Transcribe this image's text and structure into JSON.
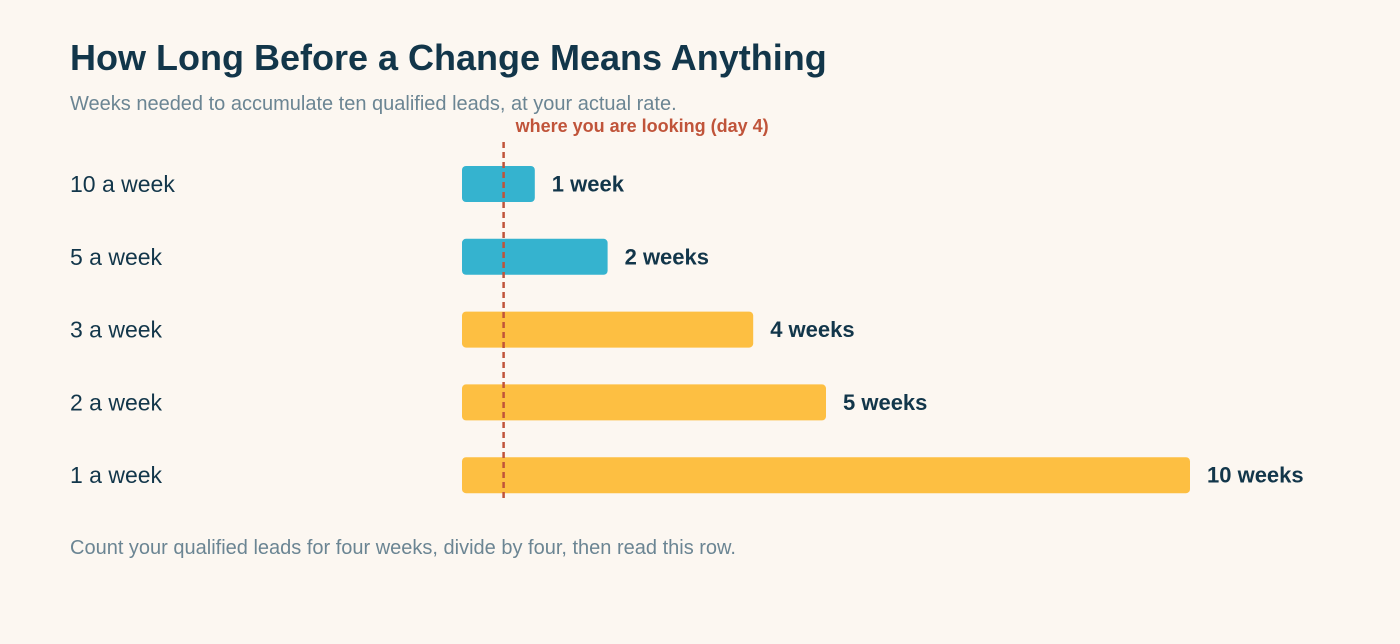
{
  "header": {
    "title": "How Long Before a Change Means Anything",
    "subtitle": "Weeks needed to accumulate ten qualified leads, at your actual rate."
  },
  "footer": {
    "note": "Count your qualified leads for four weeks, divide by four, then read this row."
  },
  "chart_data": {
    "type": "bar",
    "orientation": "horizontal",
    "categories": [
      "10 a week",
      "5 a week",
      "3 a week",
      "2 a week",
      "1 a week"
    ],
    "values": [
      1,
      2,
      4,
      5,
      10
    ],
    "value_labels": [
      "1 week",
      "2 weeks",
      "4 weeks",
      "5 weeks",
      "10 weeks"
    ],
    "bar_colors": [
      "#35b3cf",
      "#35b3cf",
      "#fdbf42",
      "#fdbf42",
      "#fdbf42"
    ],
    "xlim": [
      0,
      10
    ],
    "grid": false,
    "reference_line": {
      "value": 0.5714,
      "label": "where you are looking (day 4)",
      "color": "#c0543a",
      "style": "dashed"
    }
  }
}
